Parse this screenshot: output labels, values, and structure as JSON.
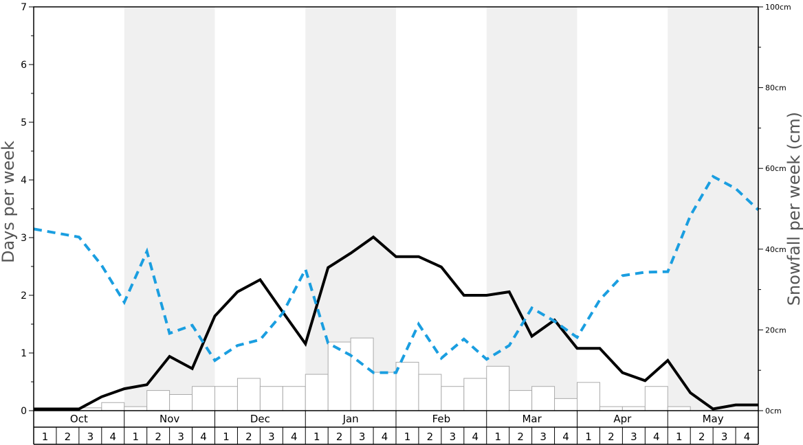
{
  "chart_data": {
    "type": "line",
    "left_axis": {
      "title": "Days per week",
      "min": 0,
      "max": 7,
      "ticks": [
        "0",
        "1",
        "2",
        "3",
        "4",
        "5",
        "6",
        "7"
      ]
    },
    "right_axis": {
      "title": "Snowfall per week (cm)",
      "min": 0,
      "max": 100,
      "ticks": [
        "0cm",
        "20cm",
        "40cm",
        "60cm",
        "80cm",
        "100cm"
      ]
    },
    "months": [
      "Oct",
      "Nov",
      "Dec",
      "Jan",
      "Feb",
      "Mar",
      "Apr",
      "May"
    ],
    "week_labels": [
      "1",
      "2",
      "3",
      "4",
      "1",
      "2",
      "3",
      "4",
      "1",
      "2",
      "3",
      "4",
      "1",
      "2",
      "3",
      "4",
      "1",
      "2",
      "3",
      "4",
      "1",
      "2",
      "3",
      "4",
      "1",
      "2",
      "3",
      "4",
      "1",
      "2",
      "3",
      "4"
    ],
    "colors": {
      "black_line": "#000000",
      "blue_dashed": "#1a9ee0",
      "shade": "#f0f0f0",
      "bar_border": "#aaaaaa"
    },
    "series": [
      {
        "axis": "left",
        "style": "solid",
        "values": [
          0.03,
          0.03,
          0.03,
          0.24,
          0.38,
          0.45,
          0.94,
          0.73,
          1.64,
          2.06,
          2.27,
          1.71,
          1.16,
          2.48,
          2.73,
          3.01,
          2.67,
          2.67,
          2.49,
          2.0,
          2.0,
          2.06,
          1.29,
          1.57,
          1.08,
          1.08,
          0.66,
          0.52,
          0.87,
          0.31,
          0.03,
          0.1,
          0.1
        ]
      },
      {
        "axis": "left",
        "style": "dashed",
        "values": [
          3.15,
          3.08,
          3.01,
          2.52,
          1.88,
          2.76,
          1.34,
          1.48,
          0.87,
          1.13,
          1.23,
          1.69,
          2.45,
          1.17,
          0.96,
          0.66,
          0.66,
          1.5,
          0.91,
          1.24,
          0.89,
          1.13,
          1.78,
          1.55,
          1.27,
          1.92,
          2.34,
          2.4,
          2.41,
          3.38,
          4.06,
          3.85,
          3.48
        ]
      },
      {
        "axis": "right",
        "type": "bar",
        "values": [
          0,
          0,
          0.7,
          2.0,
          1.0,
          5.0,
          4.0,
          6.0,
          6.0,
          8.0,
          6.0,
          6.0,
          9.0,
          17.0,
          18.0,
          9.5,
          12.0,
          9.0,
          6.0,
          8.0,
          11.0,
          5.0,
          6.0,
          3.0,
          7.0,
          1.0,
          1.0,
          6.0,
          1.0,
          0,
          0,
          0
        ]
      }
    ]
  }
}
